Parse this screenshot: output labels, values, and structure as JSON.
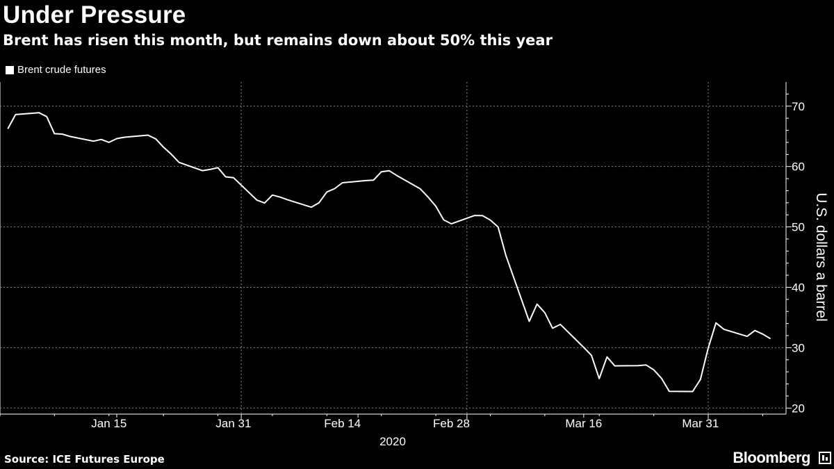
{
  "header": {
    "title": "Under Pressure",
    "subtitle": "Brent has risen this month, but remains down about 50% this year"
  },
  "legend": {
    "label": "Brent crude futures"
  },
  "footer": {
    "source": "Source: ICE Futures Europe",
    "brand": "Bloomberg"
  },
  "chart_data": {
    "type": "line",
    "title": "Under Pressure",
    "subtitle": "Brent has risen this month, but remains down about 50% this year",
    "xlabel": "2020",
    "ylabel": "U.S. dollars a barrel",
    "ylim": [
      19,
      74
    ],
    "yticks": [
      20,
      30,
      40,
      50,
      60,
      70
    ],
    "xticks": [
      "Jan 15",
      "Jan 31",
      "Feb 14",
      "Feb 28",
      "Mar 16",
      "Mar 31"
    ],
    "xlim": [
      "2020-01-01",
      "2020-04-11"
    ],
    "grid": true,
    "legend_position": "top-left",
    "series": [
      {
        "name": "Brent crude futures",
        "color": "#ffffff",
        "dates": [
          "2020-01-02",
          "2020-01-03",
          "2020-01-06",
          "2020-01-07",
          "2020-01-08",
          "2020-01-09",
          "2020-01-10",
          "2020-01-13",
          "2020-01-14",
          "2020-01-15",
          "2020-01-16",
          "2020-01-17",
          "2020-01-20",
          "2020-01-21",
          "2020-01-22",
          "2020-01-23",
          "2020-01-24",
          "2020-01-27",
          "2020-01-28",
          "2020-01-29",
          "2020-01-30",
          "2020-01-31",
          "2020-02-03",
          "2020-02-04",
          "2020-02-05",
          "2020-02-06",
          "2020-02-07",
          "2020-02-10",
          "2020-02-11",
          "2020-02-12",
          "2020-02-13",
          "2020-02-14",
          "2020-02-17",
          "2020-02-18",
          "2020-02-19",
          "2020-02-20",
          "2020-02-21",
          "2020-02-24",
          "2020-02-25",
          "2020-02-26",
          "2020-02-27",
          "2020-02-28",
          "2020-03-02",
          "2020-03-03",
          "2020-03-04",
          "2020-03-05",
          "2020-03-06",
          "2020-03-09",
          "2020-03-10",
          "2020-03-11",
          "2020-03-12",
          "2020-03-13",
          "2020-03-16",
          "2020-03-17",
          "2020-03-18",
          "2020-03-19",
          "2020-03-20",
          "2020-03-23",
          "2020-03-24",
          "2020-03-25",
          "2020-03-26",
          "2020-03-27",
          "2020-03-30",
          "2020-03-31",
          "2020-04-01",
          "2020-04-02",
          "2020-04-03",
          "2020-04-06",
          "2020-04-07",
          "2020-04-08",
          "2020-04-09"
        ],
        "values": [
          66.25,
          68.6,
          68.91,
          68.27,
          65.44,
          65.37,
          64.98,
          64.2,
          64.49,
          64.0,
          64.62,
          64.85,
          65.2,
          64.59,
          63.21,
          62.04,
          60.69,
          59.32,
          59.51,
          59.81,
          58.29,
          58.16,
          54.45,
          53.96,
          55.28,
          54.93,
          54.47,
          53.27,
          54.01,
          55.79,
          56.34,
          57.32,
          57.67,
          57.75,
          59.12,
          59.31,
          58.5,
          56.3,
          54.95,
          53.43,
          51.17,
          50.52,
          51.9,
          51.86,
          51.13,
          49.99,
          45.27,
          34.36,
          37.22,
          35.79,
          33.22,
          33.85,
          30.05,
          28.73,
          24.88,
          28.47,
          26.98,
          27.03,
          27.15,
          26.34,
          24.93,
          22.76,
          22.74,
          24.74,
          29.94,
          34.11,
          33.05,
          31.87,
          32.84,
          32.25,
          31.48
        ]
      }
    ]
  }
}
